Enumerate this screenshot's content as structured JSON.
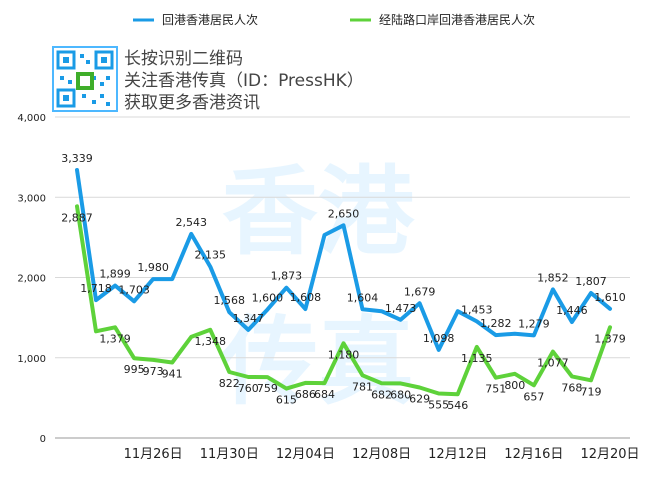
{
  "chart_data": {
    "type": "line",
    "title": "",
    "xlabel": "",
    "ylabel": "",
    "ylim": [
      0,
      4000
    ],
    "yticks": [
      0,
      1000,
      2000,
      3000,
      4000
    ],
    "ytick_labels": [
      "0",
      "1,000",
      "2,000",
      "3,000",
      "4,000"
    ],
    "grid": true,
    "legend_position": "top",
    "x_tick_labels": [
      {
        "index": 4,
        "label": "11月26日"
      },
      {
        "index": 8,
        "label": "11月30日"
      },
      {
        "index": 12,
        "label": "12月04日"
      },
      {
        "index": 16,
        "label": "12月08日"
      },
      {
        "index": 20,
        "label": "12月12日"
      },
      {
        "index": 24,
        "label": "12月16日"
      },
      {
        "index": 28,
        "label": "12月20日"
      }
    ],
    "series": [
      {
        "name": "回港香港居民人次",
        "color": "#1a9be6",
        "values": [
          3339,
          1718,
          1899,
          1703,
          1980,
          1980,
          2543,
          2135,
          1568,
          1347,
          1600,
          1873,
          1608,
          2530,
          2650,
          1604,
          1580,
          1473,
          1679,
          1098,
          1580,
          1453,
          1282,
          1300,
          1279,
          1852,
          1446,
          1807,
          1610
        ],
        "labels": [
          "3,339",
          "1,718",
          "1,899",
          "1,703",
          "1,980",
          "",
          "2,543",
          "2,135",
          "1,568",
          "1,347",
          "1,600",
          "1,873",
          "1,608",
          "",
          "2,650",
          "1,604",
          "",
          "1,473",
          "1,679",
          "1,098",
          "",
          "1,453",
          "1,282",
          "",
          "1,279",
          "1,852",
          "1,446",
          "1,807",
          "1,610"
        ]
      },
      {
        "name": "经陆路口岸回港香港居民人次",
        "color": "#5ed23a",
        "values": [
          2887,
          1330,
          1379,
          995,
          973,
          941,
          1260,
          1348,
          822,
          760,
          759,
          615,
          686,
          684,
          1180,
          781,
          682,
          680,
          629,
          555,
          546,
          1135,
          751,
          800,
          657,
          1077,
          768,
          719,
          1379
        ],
        "labels": [
          "2,887",
          "",
          "1,379",
          "995",
          "973",
          "941",
          "",
          "1,348",
          "822",
          "760",
          "759",
          "615",
          "686",
          "684",
          "1,180",
          "781",
          "682",
          "680",
          "629",
          "555",
          "546",
          "1,135",
          "751",
          "800",
          "657",
          "1,077",
          "768",
          "719",
          "1,379"
        ]
      }
    ]
  },
  "watermark": {
    "lines": [
      "长按识别二维码",
      "关注香港传真（ID：PressHK）",
      "获取更多香港资讯"
    ],
    "big_text": [
      "香港",
      "传真"
    ],
    "qr_icon": "qr-code-icon"
  }
}
